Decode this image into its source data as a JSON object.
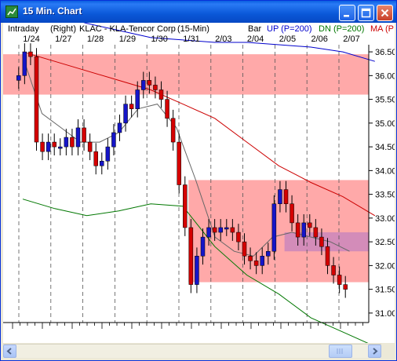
{
  "window": {
    "title": "15 Min. Chart"
  },
  "header": {
    "intraday": "Intraday",
    "axis_side": "(Right)",
    "symbol": "KLAC - KLA-Tencor Corp",
    "interval": "(15-Min)",
    "bar": "Bar",
    "up_label": "UP (P=200)",
    "dn_label": "DN (P=200)",
    "ma_label": "MA (P"
  },
  "colors": {
    "up": "#1515c8",
    "down": "#d40000",
    "band": "#ff9a9a",
    "band_overlap": "#c080c0",
    "ma": "#cc0000",
    "up_band": "#0000cc",
    "dn_band": "#007700",
    "fast_ma": "#666666"
  },
  "chart_data": {
    "type": "candlestick",
    "title": "",
    "x_labels": [
      "1/24",
      "1/27",
      "1/28",
      "1/29",
      "1/30",
      "1/31",
      "2/03",
      "2/04",
      "2/05",
      "2/06",
      "2/07"
    ],
    "y_ticks": [
      "36.50",
      "36.00",
      "35.50",
      "35.00",
      "34.50",
      "34.00",
      "33.50",
      "33.00",
      "32.50",
      "32.00",
      "31.50",
      "31.00"
    ],
    "ylim": [
      30.8,
      36.65
    ],
    "bands": [
      {
        "from": 35.6,
        "to": 36.45,
        "x_start": 0,
        "x_end": 11
      },
      {
        "from": 31.65,
        "to": 33.8,
        "x_start": 5.3,
        "x_end": 11
      },
      {
        "from": 32.3,
        "to": 32.7,
        "x_start": 8.3,
        "x_end": 11,
        "overlap": true
      }
    ],
    "closes": [
      36.0,
      36.5,
      36.4,
      34.6,
      34.4,
      34.6,
      34.5,
      34.5,
      34.7,
      34.5,
      34.9,
      34.6,
      34.4,
      34.1,
      34.2,
      34.5,
      34.8,
      35.0,
      35.4,
      35.3,
      35.7,
      35.9,
      35.8,
      35.7,
      35.5,
      35.1,
      34.6,
      33.7,
      32.8,
      31.6,
      32.2,
      32.6,
      32.8,
      32.7,
      32.8,
      32.8,
      32.7,
      32.5,
      32.2,
      32.1,
      32.0,
      32.2,
      32.3,
      33.3,
      33.6,
      33.3,
      32.9,
      32.6,
      32.9,
      32.8,
      32.6,
      32.4,
      32.0,
      31.8,
      31.6,
      31.5
    ],
    "ma_curve": [
      36.5,
      36.3,
      36.1,
      35.9,
      35.7,
      35.4,
      35.1,
      34.6,
      34.1,
      33.75,
      33.45,
      33.05
    ],
    "up_curve": [
      37.5,
      37.3,
      37.1,
      36.95,
      36.8,
      36.75,
      36.7,
      36.7,
      36.65,
      36.6,
      36.5,
      36.3
    ],
    "dn_curve": [
      33.4,
      33.2,
      33.05,
      33.15,
      33.3,
      33.25,
      32.4,
      31.8,
      31.4,
      30.9,
      30.6,
      30.3
    ],
    "fast_curve": [
      36.4,
      35.2,
      34.9,
      34.6,
      34.6,
      34.8,
      35.3,
      35.4,
      34.9,
      33.8,
      32.6,
      32.3,
      32.2,
      32.6,
      32.7,
      32.6,
      32.5,
      32.3
    ]
  }
}
